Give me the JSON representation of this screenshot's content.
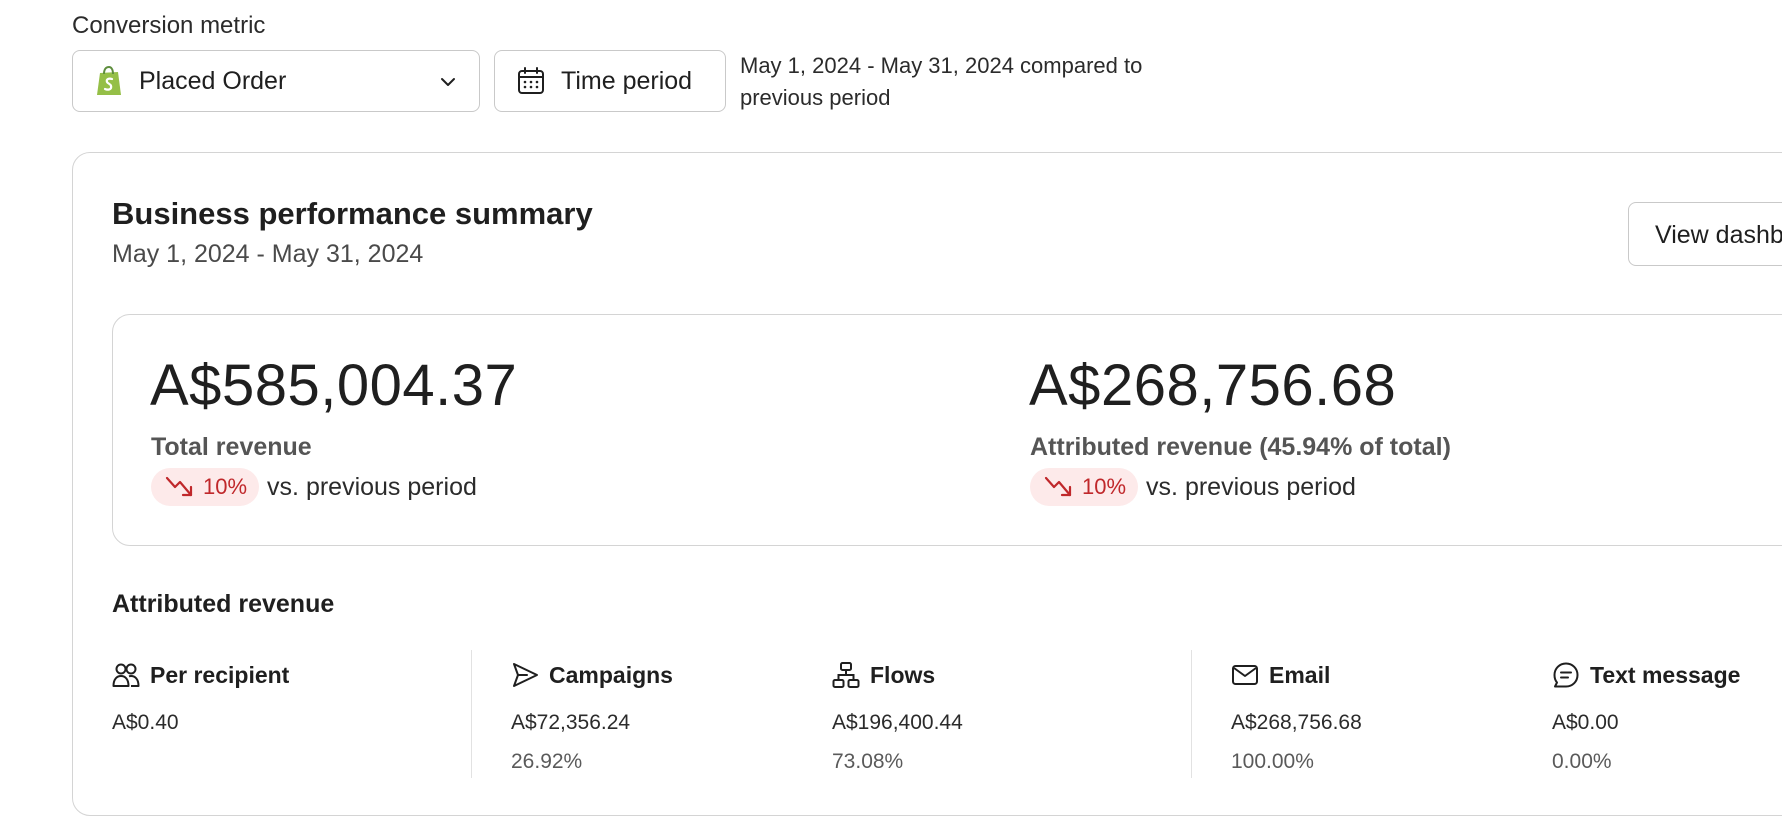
{
  "filters": {
    "metric_label": "Conversion metric",
    "metric_selected": "Placed Order",
    "metric_icon": "shopify-bag-icon",
    "time_button_label": "Time period",
    "date_compare_text": "May 1, 2024 - May 31, 2024 compared to previous period"
  },
  "summary": {
    "title": "Business performance summary",
    "date_range": "May 1, 2024 - May 31, 2024",
    "view_button_label": "View dashb",
    "total": {
      "value": "A$585,004.37",
      "label": "Total revenue",
      "trend": "10%",
      "trend_direction": "down",
      "vs_text": "vs. previous period"
    },
    "attributed": {
      "value": "A$268,756.68",
      "label": "Attributed revenue (45.94% of total)",
      "trend": "10%",
      "trend_direction": "down",
      "vs_text": "vs. previous period"
    }
  },
  "attributed_revenue": {
    "heading": "Attributed revenue",
    "columns": [
      {
        "label": "Per recipient",
        "icon": "people-icon",
        "value": "A$0.40",
        "pct": ""
      },
      {
        "label": "Campaigns",
        "icon": "send-icon",
        "value": "A$72,356.24",
        "pct": "26.92%"
      },
      {
        "label": "Flows",
        "icon": "flow-icon",
        "value": "A$196,400.44",
        "pct": "73.08%"
      },
      {
        "label": "Email",
        "icon": "mail-icon",
        "value": "A$268,756.68",
        "pct": "100.00%"
      },
      {
        "label": "Text message",
        "icon": "message-icon",
        "value": "A$0.00",
        "pct": "0.00%"
      }
    ]
  },
  "colors": {
    "trend_down_text": "#c0282b",
    "trend_down_bg": "#fdeaea",
    "shopify_green": "#95bf47"
  }
}
